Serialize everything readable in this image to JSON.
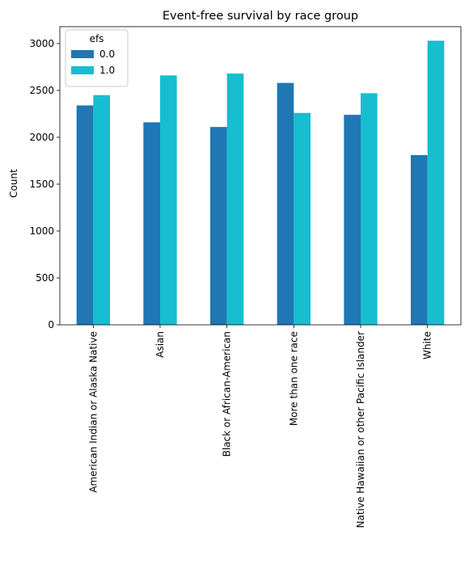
{
  "chart_data": {
    "type": "bar",
    "title": "Event-free survival by race group",
    "xlabel": "",
    "ylabel": "Count",
    "categories": [
      "American Indian or Alaska Native",
      "Asian",
      "Black or African-American",
      "More than one race",
      "Native Hawaiian or other Pacific Islander",
      "White"
    ],
    "series": [
      {
        "name": "0.0",
        "color": "#1f77b4",
        "values": [
          2340,
          2160,
          2110,
          2580,
          2240,
          1810
        ]
      },
      {
        "name": "1.0",
        "color": "#17becf",
        "values": [
          2450,
          2660,
          2680,
          2260,
          2470,
          3030
        ]
      }
    ],
    "ylim": [
      0,
      3180
    ],
    "yticks": [
      0,
      500,
      1000,
      1500,
      2000,
      2500,
      3000
    ],
    "legend": {
      "title": "efs",
      "placement": "top-left"
    },
    "grid": false
  }
}
